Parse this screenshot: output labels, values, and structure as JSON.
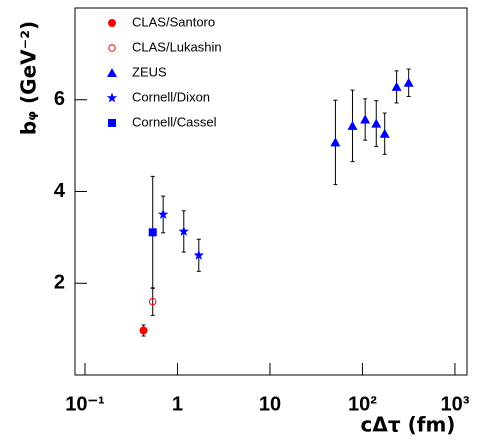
{
  "chart_data": {
    "type": "scatter",
    "x_label": "cΔτ (fm)",
    "y_label": "bᵩ (GeV⁻²)",
    "xscale": "log",
    "xlim": [
      0.078,
      1350
    ],
    "ylim": [
      0,
      8
    ],
    "xticks": [
      {
        "value": 0.1,
        "label": "10⁻¹"
      },
      1,
      10,
      {
        "value": 100,
        "label": "10²"
      },
      {
        "value": 1000,
        "label": "10³"
      }
    ],
    "yticks": [
      2,
      4,
      6
    ],
    "series": [
      {
        "name": "CLAS/Santoro",
        "color": "#ff0000",
        "marker": "circle",
        "x": [
          0.43
        ],
        "values": [
          0.97
        ],
        "errors": [
          0.12
        ]
      },
      {
        "name": "CLAS/Lukashin",
        "color": "#ff0000",
        "marker": "open-circle",
        "x": [
          0.54
        ],
        "values": [
          1.6
        ],
        "errors": [
          0.3
        ]
      },
      {
        "name": "ZEUS",
        "color": "#0000ff",
        "marker": "triangle",
        "x": [
          51,
          78,
          107,
          141,
          174,
          234,
          316
        ],
        "values": [
          5.07,
          5.43,
          5.57,
          5.48,
          5.26,
          6.28,
          6.37
        ],
        "errors": [
          0.92,
          0.78,
          0.45,
          0.5,
          0.45,
          0.35,
          0.3
        ]
      },
      {
        "name": "Cornell/Dixon",
        "color": "#0000ff",
        "marker": "star",
        "x": [
          0.7,
          1.17,
          1.7
        ],
        "values": [
          3.5,
          3.13,
          2.61
        ],
        "errors": [
          0.4,
          0.45,
          0.35
        ]
      },
      {
        "name": "Cornell/Cassel",
        "color": "#0000ff",
        "marker": "square",
        "x": [
          0.54
        ],
        "values": [
          3.11
        ],
        "errors": [
          1.22
        ]
      }
    ]
  }
}
